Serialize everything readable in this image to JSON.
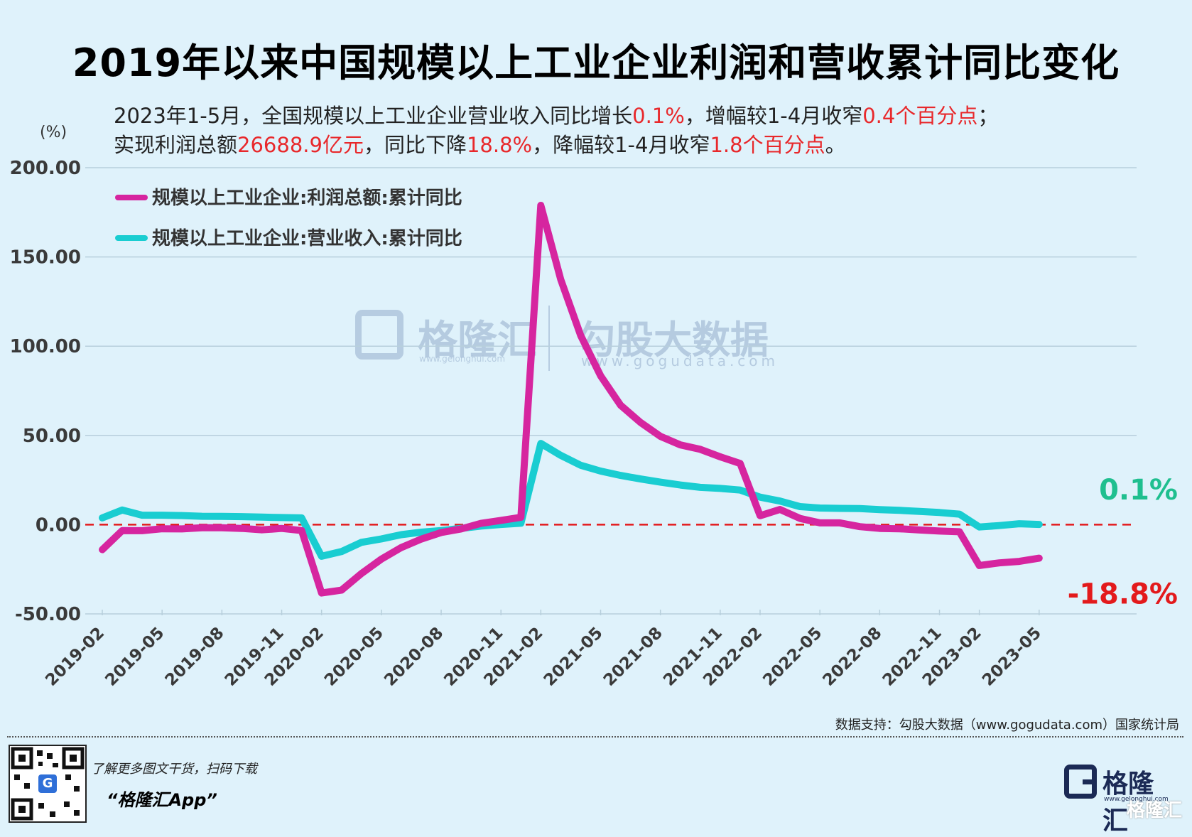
{
  "title": "2019年以来中国规模以上工业企业利润和营收累计同比变化",
  "subtitle_line1": [
    {
      "text": "2023年1-5月，全国规模以上工业企业营业收入同比增长",
      "hl": false
    },
    {
      "text": "0.1%",
      "hl": true
    },
    {
      "text": "，增幅较1-4月收窄",
      "hl": false
    },
    {
      "text": "0.4个百分点",
      "hl": true
    },
    {
      "text": "；",
      "hl": false
    }
  ],
  "subtitle_line2": [
    {
      "text": "实现利润总额",
      "hl": false
    },
    {
      "text": "26688.9亿元",
      "hl": true
    },
    {
      "text": "，同比下降",
      "hl": false
    },
    {
      "text": "18.8%",
      "hl": true
    },
    {
      "text": "，降幅较1-4月收窄",
      "hl": false
    },
    {
      "text": "1.8个百分点",
      "hl": true
    },
    {
      "text": "。",
      "hl": false
    }
  ],
  "unit_label": "(%)",
  "watermark": {
    "brand1": "格隆汇",
    "brand1_url": "www.gelonghui.com",
    "brand2": "勾股大数据",
    "brand2_url": "www.gogudata.com"
  },
  "source": "数据支持：勾股大数据（www.gogudata.com）国家统计局",
  "footer": {
    "promo": "了解更多图文干货，扫码下载",
    "app": "“格隆汇App”",
    "logo_name": "格隆汇",
    "logo_url": "www.gelonghui.com",
    "corner": "格隆汇",
    "qr_letter": "G"
  },
  "colors": {
    "profit": "#d6259f",
    "revenue": "#19cdd1",
    "zero_line": "#e31a1c",
    "label_revenue": "#1fbf8f",
    "label_profit": "#e31a1c",
    "highlight": "#e8282b",
    "background": "#dff2fb"
  },
  "chart_data": {
    "type": "line",
    "ylim": [
      -50,
      200
    ],
    "yticks": [
      "200.00",
      "150.00",
      "100.00",
      "50.00",
      "0.00",
      "-50.00"
    ],
    "ytick_values": [
      200,
      150,
      100,
      50,
      0,
      -50
    ],
    "xticks": [
      "2019-02",
      "2019-05",
      "2019-08",
      "2019-11",
      "2020-02",
      "2020-05",
      "2020-08",
      "2020-11",
      "2021-02",
      "2021-05",
      "2021-08",
      "2021-11",
      "2022-02",
      "2022-05",
      "2022-08",
      "2022-11",
      "2023-02",
      "2023-05"
    ],
    "x": [
      "2019-02",
      "2019-03",
      "2019-04",
      "2019-05",
      "2019-06",
      "2019-07",
      "2019-08",
      "2019-09",
      "2019-10",
      "2019-11",
      "2019-12",
      "2020-02",
      "2020-03",
      "2020-04",
      "2020-05",
      "2020-06",
      "2020-07",
      "2020-08",
      "2020-09",
      "2020-10",
      "2020-11",
      "2020-12",
      "2021-02",
      "2021-03",
      "2021-04",
      "2021-05",
      "2021-06",
      "2021-07",
      "2021-08",
      "2021-09",
      "2021-10",
      "2021-11",
      "2021-12",
      "2022-02",
      "2022-03",
      "2022-04",
      "2022-05",
      "2022-06",
      "2022-07",
      "2022-08",
      "2022-09",
      "2022-10",
      "2022-11",
      "2022-12",
      "2023-02",
      "2023-03",
      "2023-04",
      "2023-05"
    ],
    "grid": true,
    "zero_line": "dashed",
    "legend_position": "top-left",
    "series": [
      {
        "name": "规模以上工业企业:利润总额:累计同比",
        "color_key": "profit",
        "values": [
          -14.0,
          -3.3,
          -3.4,
          -2.3,
          -2.4,
          -1.7,
          -1.7,
          -2.1,
          -2.9,
          -2.1,
          -3.3,
          -38.3,
          -36.7,
          -27.4,
          -19.3,
          -12.8,
          -8.1,
          -4.4,
          -2.4,
          0.7,
          2.4,
          4.1,
          178.9,
          137.3,
          106.0,
          83.4,
          66.9,
          57.3,
          49.5,
          44.7,
          42.2,
          38.0,
          34.3,
          5.0,
          8.5,
          3.5,
          1.0,
          1.0,
          -1.1,
          -2.1,
          -2.3,
          -3.0,
          -3.6,
          -4.0,
          -22.9,
          -21.4,
          -20.6,
          -18.8
        ]
      },
      {
        "name": "规模以上工业企业:营业收入:累计同比",
        "color_key": "revenue",
        "values": [
          3.8,
          8.2,
          5.3,
          5.3,
          5.1,
          4.7,
          4.6,
          4.5,
          4.2,
          4.0,
          3.8,
          -17.7,
          -15.1,
          -9.9,
          -8.0,
          -5.6,
          -4.2,
          -3.3,
          -2.1,
          -0.8,
          0.1,
          0.8,
          45.5,
          38.8,
          33.3,
          30.0,
          27.6,
          25.6,
          23.8,
          22.2,
          20.9,
          20.3,
          19.4,
          15.4,
          13.2,
          10.1,
          9.3,
          9.1,
          9.0,
          8.4,
          8.0,
          7.4,
          6.8,
          5.9,
          -1.3,
          -0.5,
          0.5,
          0.1
        ]
      }
    ],
    "end_labels": {
      "revenue": "0.1%",
      "profit": "-18.8%"
    }
  }
}
